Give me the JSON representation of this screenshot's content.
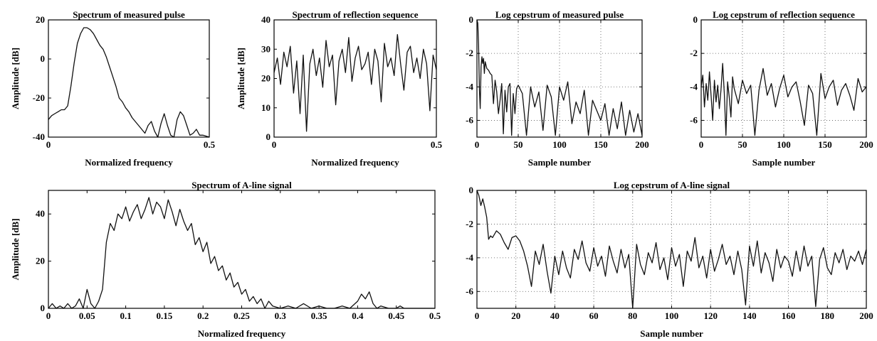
{
  "chart_data": [
    {
      "id": "p1",
      "type": "line",
      "title": "Spectrum of measured pulse",
      "xlabel": "Normalized frequency",
      "ylabel": "Amplitude [dB]",
      "xlim": [
        0,
        0.5
      ],
      "ylim": [
        -40,
        20
      ],
      "xticks": [
        0,
        0.5
      ],
      "xtick_labels": [
        "0",
        "0.5"
      ],
      "yticks": [
        -40,
        -20,
        0,
        20
      ],
      "ytick_labels": [
        "-40",
        "-20",
        "0",
        "20"
      ],
      "grid": false,
      "series": [
        {
          "values_x": [
            0,
            0.01,
            0.02,
            0.03,
            0.04,
            0.05,
            0.06,
            0.07,
            0.08,
            0.09,
            0.1,
            0.11,
            0.12,
            0.13,
            0.14,
            0.15,
            0.16,
            0.17,
            0.18,
            0.19,
            0.2,
            0.21,
            0.22,
            0.23,
            0.24,
            0.25,
            0.26,
            0.27,
            0.28,
            0.3,
            0.31,
            0.32,
            0.33,
            0.34,
            0.35,
            0.36,
            0.37,
            0.38,
            0.39,
            0.4,
            0.41,
            0.42,
            0.43,
            0.44,
            0.45,
            0.46,
            0.47,
            0.48,
            0.5
          ],
          "values": [
            -31,
            -29,
            -28,
            -27,
            -26,
            -26,
            -24,
            -14,
            -2,
            8,
            13,
            16,
            16,
            15,
            13,
            10,
            7,
            5,
            1,
            -4,
            -9,
            -14,
            -20,
            -22,
            -25,
            -27,
            -30,
            -32,
            -34,
            -38,
            -34,
            -32,
            -37,
            -40,
            -33,
            -28,
            -34,
            -39,
            -40,
            -31,
            -27,
            -29,
            -34,
            -39,
            -38,
            -36,
            -39,
            -39,
            -40
          ]
        }
      ]
    },
    {
      "id": "p2",
      "type": "line",
      "title": "Spectrum of reflection sequence",
      "xlabel": "Normalized frequency",
      "ylabel": "Amplitude [dB]",
      "xlim": [
        0,
        0.5
      ],
      "ylim": [
        0,
        40
      ],
      "xticks": [
        0,
        0.5
      ],
      "xtick_labels": [
        "0",
        "0.5"
      ],
      "yticks": [
        0,
        10,
        20,
        30,
        40
      ],
      "ytick_labels": [
        "0",
        "10",
        "20",
        "30",
        "40"
      ],
      "grid": false,
      "series": [
        {
          "values_x": [
            0,
            0.01,
            0.02,
            0.03,
            0.04,
            0.05,
            0.06,
            0.07,
            0.08,
            0.09,
            0.1,
            0.11,
            0.12,
            0.13,
            0.14,
            0.15,
            0.16,
            0.17,
            0.18,
            0.19,
            0.2,
            0.21,
            0.22,
            0.23,
            0.24,
            0.25,
            0.26,
            0.27,
            0.28,
            0.29,
            0.3,
            0.31,
            0.32,
            0.33,
            0.34,
            0.35,
            0.36,
            0.37,
            0.38,
            0.39,
            0.4,
            0.41,
            0.42,
            0.43,
            0.44,
            0.45,
            0.46,
            0.47,
            0.48,
            0.49,
            0.5
          ],
          "values": [
            22,
            27,
            18,
            29,
            24,
            31,
            15,
            26,
            8,
            28,
            2,
            25,
            30,
            21,
            27,
            17,
            33,
            24,
            28,
            11,
            26,
            30,
            22,
            34,
            19,
            27,
            31,
            23,
            25,
            29,
            18,
            30,
            26,
            12,
            32,
            24,
            27,
            21,
            35,
            25,
            16,
            29,
            31,
            22,
            27,
            20,
            30,
            25,
            9,
            28,
            23
          ]
        }
      ]
    },
    {
      "id": "p3",
      "type": "line",
      "title": "Log cepstrum of measured pulse",
      "xlabel": "Sample number",
      "ylabel": "",
      "xlim": [
        0,
        200
      ],
      "ylim": [
        -7,
        0
      ],
      "xticks": [
        0,
        50,
        100,
        150,
        200
      ],
      "xtick_labels": [
        "0",
        "50",
        "100",
        "150",
        "200"
      ],
      "yticks": [
        -6,
        -4,
        -2,
        0
      ],
      "ytick_labels": [
        "-6",
        "-4",
        "-2",
        "0"
      ],
      "grid": true,
      "series": [
        {
          "values_x": [
            0,
            1,
            2,
            3,
            4,
            5,
            6,
            7,
            8,
            9,
            10,
            12,
            14,
            16,
            18,
            20,
            22,
            24,
            26,
            28,
            30,
            32,
            34,
            36,
            38,
            40,
            42,
            44,
            46,
            48,
            50,
            55,
            60,
            65,
            70,
            75,
            80,
            85,
            90,
            95,
            100,
            105,
            110,
            115,
            120,
            125,
            130,
            135,
            140,
            145,
            150,
            155,
            160,
            165,
            170,
            175,
            180,
            185,
            190,
            195,
            200
          ],
          "values": [
            0,
            -0.2,
            -1.5,
            -4.2,
            -5.3,
            -2.8,
            -2.2,
            -2.6,
            -2.3,
            -3.2,
            -2.5,
            -2.9,
            -3.0,
            -3.2,
            -3.3,
            -5.0,
            -3.6,
            -4.3,
            -5.6,
            -4.8,
            -3.8,
            -6.8,
            -4.2,
            -5.5,
            -4.0,
            -3.8,
            -6.9,
            -4.4,
            -5.6,
            -4.1,
            -3.9,
            -4.4,
            -6.9,
            -4.0,
            -5.2,
            -4.3,
            -6.6,
            -3.9,
            -4.6,
            -6.9,
            -4.0,
            -4.8,
            -3.7,
            -6.2,
            -4.9,
            -5.6,
            -4.2,
            -6.9,
            -4.8,
            -5.4,
            -6.0,
            -5.0,
            -6.9,
            -5.3,
            -6.5,
            -4.9,
            -6.9,
            -5.4,
            -6.7,
            -5.6,
            -6.9
          ]
        }
      ]
    },
    {
      "id": "p4",
      "type": "line",
      "title": "Log cepstrum of reflection sequence",
      "xlabel": "Sample number",
      "ylabel": "",
      "xlim": [
        0,
        200
      ],
      "ylim": [
        -7,
        0
      ],
      "xticks": [
        0,
        50,
        100,
        150,
        200
      ],
      "xtick_labels": [
        "0",
        "50",
        "100",
        "150",
        "200"
      ],
      "yticks": [
        -6,
        -4,
        -2,
        0
      ],
      "ytick_labels": [
        "-6",
        "-4",
        "-2",
        "0"
      ],
      "grid": true,
      "series": [
        {
          "values_x": [
            0,
            2,
            4,
            6,
            8,
            10,
            12,
            14,
            16,
            18,
            20,
            22,
            24,
            26,
            28,
            30,
            32,
            34,
            36,
            38,
            40,
            45,
            50,
            55,
            60,
            65,
            70,
            75,
            80,
            85,
            90,
            95,
            100,
            105,
            110,
            115,
            120,
            125,
            130,
            135,
            140,
            145,
            150,
            155,
            160,
            165,
            170,
            175,
            180,
            185,
            190,
            195,
            200
          ],
          "values": [
            -4.0,
            -3.3,
            -5.2,
            -3.8,
            -4.8,
            -3.1,
            -4.5,
            -6.0,
            -3.6,
            -4.9,
            -3.9,
            -5.3,
            -4.2,
            -2.6,
            -4.4,
            -6.9,
            -3.7,
            -4.6,
            -5.8,
            -3.4,
            -4.1,
            -5.0,
            -3.6,
            -4.4,
            -3.9,
            -6.9,
            -4.2,
            -2.9,
            -4.5,
            -3.8,
            -5.2,
            -4.1,
            -3.3,
            -4.6,
            -4.0,
            -3.7,
            -4.9,
            -6.3,
            -3.9,
            -4.4,
            -6.9,
            -3.2,
            -4.7,
            -4.0,
            -3.6,
            -5.1,
            -4.2,
            -3.8,
            -4.5,
            -5.4,
            -3.5,
            -4.3,
            -4.0
          ]
        }
      ]
    },
    {
      "id": "p5",
      "type": "line",
      "title": "Spectrum of A-line signal",
      "xlabel": "Normalized frequency",
      "ylabel": "Amplitude [dB]",
      "xlim": [
        0,
        0.5
      ],
      "ylim": [
        0,
        50
      ],
      "xticks": [
        0,
        0.05,
        0.1,
        0.15,
        0.2,
        0.25,
        0.3,
        0.35,
        0.4,
        0.45,
        0.5
      ],
      "xtick_labels": [
        "0",
        "0.05",
        "0.1",
        "0.15",
        "0.2",
        "0.25",
        "0.3",
        "0.35",
        "0.4",
        "0.45",
        "0.5"
      ],
      "yticks": [
        0,
        20,
        40
      ],
      "ytick_labels": [
        "0",
        "20",
        "40"
      ],
      "grid": false,
      "series": [
        {
          "values_x": [
            0,
            0.005,
            0.01,
            0.015,
            0.02,
            0.025,
            0.03,
            0.035,
            0.04,
            0.045,
            0.05,
            0.055,
            0.06,
            0.065,
            0.07,
            0.075,
            0.08,
            0.085,
            0.09,
            0.095,
            0.1,
            0.105,
            0.11,
            0.115,
            0.12,
            0.125,
            0.13,
            0.135,
            0.14,
            0.145,
            0.15,
            0.155,
            0.16,
            0.165,
            0.17,
            0.175,
            0.18,
            0.185,
            0.19,
            0.195,
            0.2,
            0.205,
            0.21,
            0.215,
            0.22,
            0.225,
            0.23,
            0.235,
            0.24,
            0.245,
            0.25,
            0.255,
            0.26,
            0.265,
            0.27,
            0.275,
            0.28,
            0.285,
            0.29,
            0.3,
            0.31,
            0.32,
            0.33,
            0.34,
            0.35,
            0.36,
            0.37,
            0.38,
            0.39,
            0.4,
            0.405,
            0.41,
            0.415,
            0.42,
            0.425,
            0.43,
            0.44,
            0.45,
            0.455,
            0.46,
            0.47,
            0.48,
            0.49,
            0.5
          ],
          "values": [
            0,
            2,
            0,
            1,
            0,
            2,
            0,
            1,
            4,
            0,
            8,
            2,
            0,
            3,
            8,
            28,
            36,
            33,
            40,
            38,
            43,
            37,
            41,
            44,
            38,
            42,
            47,
            40,
            45,
            43,
            38,
            46,
            41,
            35,
            42,
            37,
            33,
            36,
            27,
            30,
            24,
            28,
            19,
            22,
            16,
            18,
            12,
            15,
            9,
            11,
            6,
            8,
            3,
            5,
            2,
            4,
            0,
            3,
            1,
            0,
            1,
            0,
            2,
            0,
            1,
            0,
            0,
            1,
            0,
            3,
            6,
            4,
            7,
            2,
            0,
            1,
            0,
            0,
            1,
            0,
            0,
            0,
            0,
            0
          ]
        }
      ]
    },
    {
      "id": "p6",
      "type": "line",
      "title": "Log cepstrum of A-line signal",
      "xlabel": "Sample number",
      "ylabel": "",
      "xlim": [
        0,
        200
      ],
      "ylim": [
        -7,
        0
      ],
      "xticks": [
        0,
        20,
        40,
        60,
        80,
        100,
        120,
        140,
        160,
        180,
        200
      ],
      "xtick_labels": [
        "0",
        "20",
        "40",
        "60",
        "80",
        "100",
        "120",
        "140",
        "160",
        "180",
        "200"
      ],
      "yticks": [
        -6,
        -4,
        -2,
        0
      ],
      "ytick_labels": [
        "-6",
        "-4",
        "-2",
        "0"
      ],
      "grid": true,
      "series": [
        {
          "values_x": [
            0,
            1,
            2,
            3,
            4,
            5,
            6,
            7,
            8,
            10,
            12,
            14,
            16,
            18,
            20,
            22,
            24,
            26,
            28,
            30,
            32,
            34,
            36,
            38,
            40,
            42,
            44,
            46,
            48,
            50,
            52,
            54,
            56,
            58,
            60,
            62,
            64,
            66,
            68,
            70,
            72,
            74,
            76,
            78,
            80,
            82,
            84,
            86,
            88,
            90,
            92,
            94,
            96,
            98,
            100,
            102,
            104,
            106,
            108,
            110,
            112,
            114,
            116,
            118,
            120,
            122,
            124,
            126,
            128,
            130,
            132,
            134,
            136,
            138,
            140,
            142,
            144,
            146,
            148,
            150,
            152,
            154,
            156,
            158,
            160,
            162,
            164,
            166,
            168,
            170,
            172,
            174,
            176,
            178,
            180,
            182,
            184,
            186,
            188,
            190,
            192,
            194,
            196,
            198,
            200
          ],
          "values": [
            0,
            -0.3,
            -0.9,
            -0.5,
            -1.0,
            -1.6,
            -2.9,
            -2.7,
            -2.8,
            -2.4,
            -2.6,
            -3.1,
            -3.5,
            -2.8,
            -2.7,
            -3.0,
            -3.6,
            -4.5,
            -5.7,
            -3.6,
            -4.4,
            -3.2,
            -4.8,
            -6.1,
            -3.9,
            -5.0,
            -3.6,
            -4.6,
            -5.2,
            -3.5,
            -4.1,
            -3.0,
            -4.3,
            -4.8,
            -3.4,
            -4.5,
            -3.9,
            -5.1,
            -3.3,
            -4.2,
            -4.9,
            -3.5,
            -4.6,
            -3.8,
            -7.0,
            -3.2,
            -4.4,
            -5.0,
            -3.7,
            -4.3,
            -3.1,
            -4.7,
            -4.0,
            -5.3,
            -3.4,
            -4.5,
            -3.8,
            -5.7,
            -3.6,
            -4.2,
            -2.8,
            -4.6,
            -3.9,
            -5.2,
            -3.5,
            -4.8,
            -4.1,
            -3.2,
            -4.4,
            -3.9,
            -5.0,
            -3.6,
            -4.7,
            -6.8,
            -3.3,
            -4.5,
            -3.0,
            -4.9,
            -3.7,
            -4.3,
            -5.4,
            -3.5,
            -4.6,
            -3.9,
            -4.2,
            -5.1,
            -3.6,
            -4.8,
            -3.3,
            -4.5,
            -3.9,
            -6.9,
            -4.1,
            -3.4,
            -4.6,
            -5.0,
            -3.7,
            -4.3,
            -3.5,
            -4.7,
            -3.9,
            -4.2,
            -3.6,
            -4.4,
            -3.5
          ]
        }
      ]
    }
  ]
}
